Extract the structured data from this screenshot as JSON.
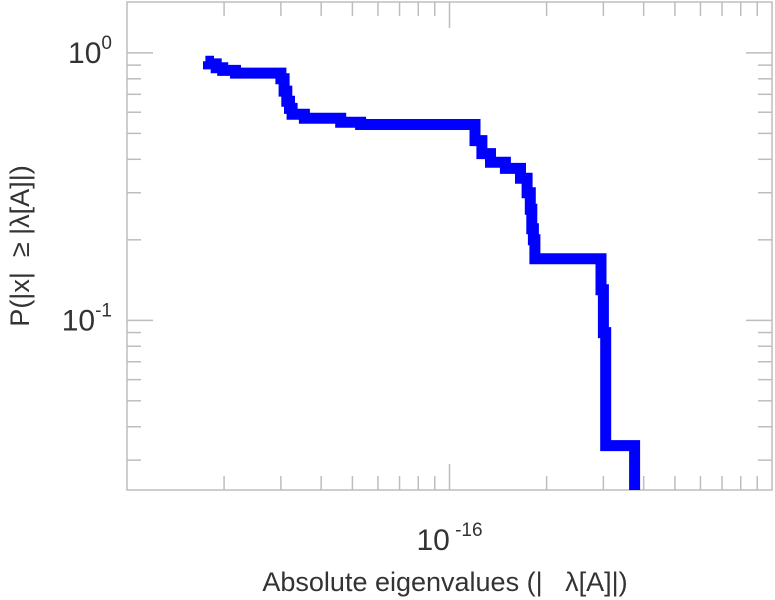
{
  "chart_data": {
    "type": "line",
    "title": "",
    "xlabel": "Absolute eigenvalues (|   λ[A]|)",
    "ylabel": "P(|x|  ≥ |λ[A]|)",
    "x_scale": "log",
    "y_scale": "log",
    "xlim": [
      1e-17,
      1e-15
    ],
    "ylim": [
      0.0232,
      1.55
    ],
    "y_ticks": [
      {
        "value": 1,
        "base": "10",
        "exp": "0"
      },
      {
        "value": 0.1,
        "base": "10",
        "exp": "-1"
      }
    ],
    "x_ticks": [
      {
        "value": 1e-16,
        "base": "10",
        "exp": "-16"
      }
    ],
    "grid": false,
    "legend": "none",
    "line_color": "#0000ff",
    "series": [
      {
        "step": true,
        "x": [
          1.75e-17,
          1.79e-17,
          1.89e-17,
          1.98e-17,
          2.17e-17,
          2.37e-17,
          2.46e-17,
          3e-17,
          3.07e-17,
          3.13e-17,
          3.19e-17,
          3.25e-17,
          3.55e-17,
          4.19e-17,
          4.6e-17,
          5.3e-17,
          1.15e-16,
          1.2e-16,
          1.26e-16,
          1.34e-16,
          1.49e-16,
          1.66e-16,
          1.74e-16,
          1.78e-16,
          1.8e-16,
          1.82e-16,
          1.84e-16,
          2.9e-16,
          2.95e-16,
          3e-16,
          3.05e-16,
          3.75e-16
        ],
        "y": [
          0.93,
          0.91,
          0.88,
          0.86,
          0.84,
          0.84,
          0.84,
          0.8,
          0.72,
          0.66,
          0.62,
          0.59,
          0.57,
          0.57,
          0.55,
          0.54,
          0.54,
          0.47,
          0.42,
          0.39,
          0.37,
          0.34,
          0.3,
          0.26,
          0.22,
          0.2,
          0.17,
          0.17,
          0.13,
          0.09,
          0.034,
          0.034
        ]
      }
    ]
  }
}
